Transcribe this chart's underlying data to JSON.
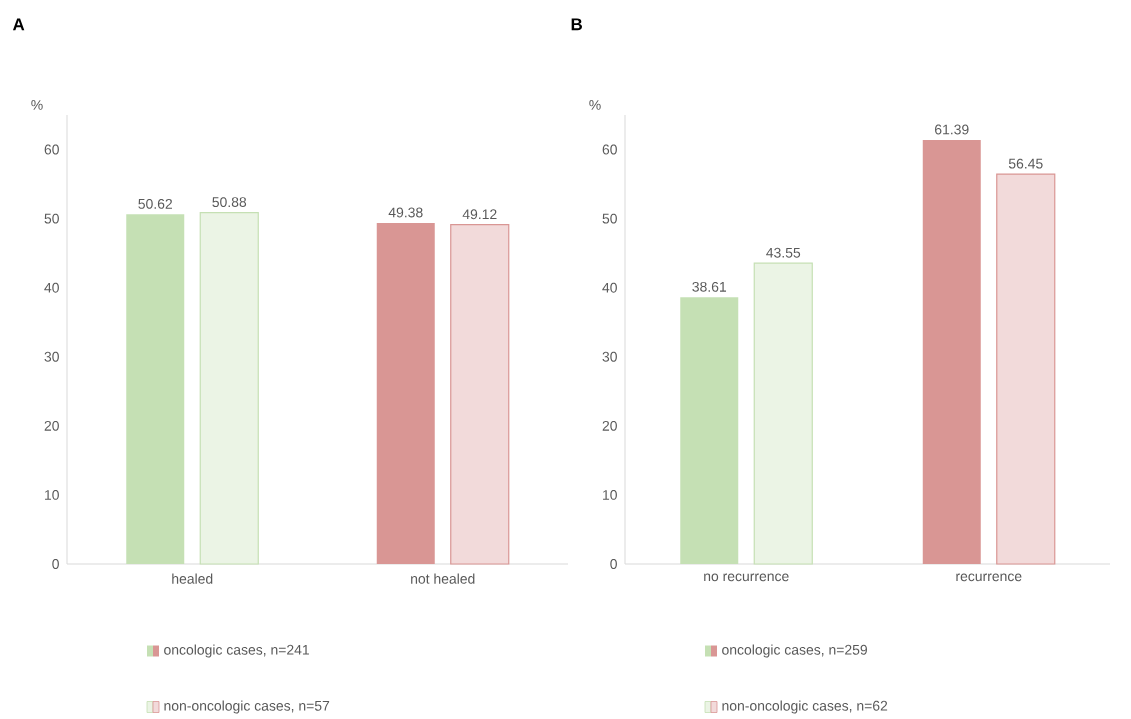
{
  "chart_data": [
    {
      "type": "bar",
      "title": "A",
      "ylabel": "%",
      "categories": [
        "healed",
        "not healed"
      ],
      "series": [
        {
          "name": "oncologic cases, n=241",
          "colors": [
            "#c5e0b4",
            "#d99694"
          ],
          "values": [
            50.62,
            49.38
          ]
        },
        {
          "name": "non-oncologic cases, n=57",
          "colors": [
            "#c5e0b4",
            "#d99694"
          ],
          "values": [
            50.88,
            49.12
          ]
        }
      ],
      "ylim": [
        0,
        65
      ],
      "yticks": [
        0,
        10,
        20,
        30,
        40,
        50,
        60
      ],
      "data_labels": true,
      "legend": "bottom"
    },
    {
      "type": "bar",
      "title": "B",
      "ylabel": "%",
      "categories": [
        "no recurrence",
        "recurrence"
      ],
      "series": [
        {
          "name": "oncologic cases, n=259",
          "colors": [
            "#c5e0b4",
            "#d99694"
          ],
          "values": [
            38.61,
            61.39
          ]
        },
        {
          "name": "non-oncologic cases, n=62",
          "colors": [
            "#c5e0b4",
            "#d99694"
          ],
          "values": [
            43.55,
            56.45
          ]
        }
      ],
      "ylim": [
        0,
        65
      ],
      "yticks": [
        0,
        10,
        20,
        30,
        40,
        50,
        60
      ],
      "data_labels": true,
      "legend": "bottom"
    }
  ]
}
